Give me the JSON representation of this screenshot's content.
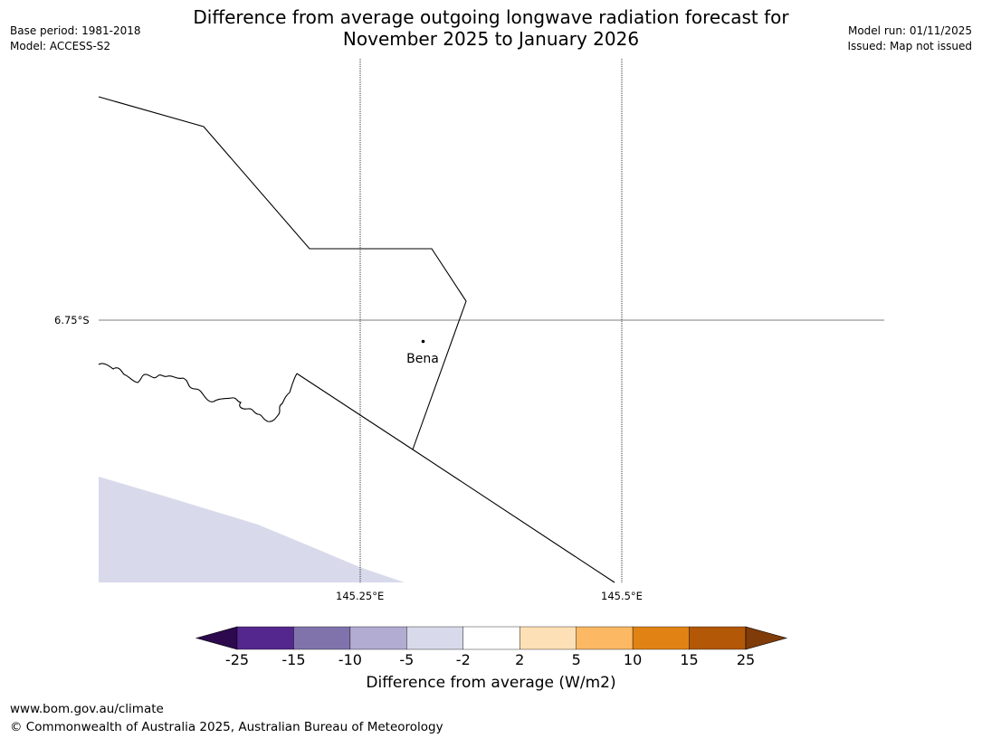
{
  "title_line1": "Difference from average outgoing longwave radiation forecast for",
  "title_line2": "November 2025 to January 2026",
  "base_period": "Base period: 1981-2018",
  "model": "Model: ACCESS-S2",
  "model_run": "Model run: 01/11/2025",
  "issued": "Issued: Map not issued",
  "graticule": {
    "lat_label": "6.75°S",
    "lon_labels": [
      "145.25°E",
      "145.5°E"
    ]
  },
  "place": {
    "name": "Bena"
  },
  "shaded_region_category": "-5 to -2",
  "colorbar": {
    "ticks": [
      "-25",
      "-15",
      "-10",
      "-5",
      "-2",
      "2",
      "5",
      "10",
      "15",
      "25"
    ],
    "colors": [
      "#2d0a4e",
      "#54278f",
      "#8073ac",
      "#b2abd2",
      "#d8daeb",
      "#ffffff",
      "#fee0b6",
      "#fdb863",
      "#e08214",
      "#b35806",
      "#7f3b08"
    ],
    "label": "Difference from average (W/m2)"
  },
  "footer": {
    "url": "www.bom.gov.au/climate",
    "copyright": "© Commonwealth of Australia 2025, Australian Bureau of Meteorology"
  }
}
